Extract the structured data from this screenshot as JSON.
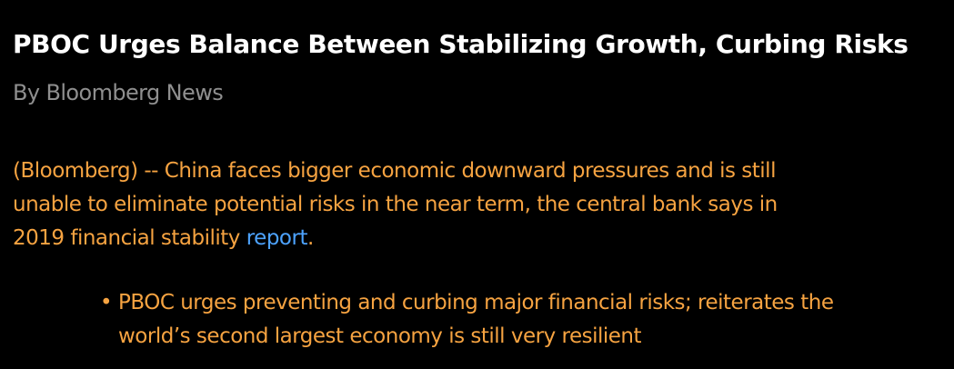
{
  "article": {
    "headline": "PBOC Urges Balance Between Stabilizing Growth, Curbing Risks",
    "byline": "By Bloomberg News",
    "lede": {
      "text": "(Bloomberg) -- China faces bigger economic downward pressures and is still unable to eliminate potential risks in the near term, the central bank says in 2019 financial stability ",
      "link_text": "report",
      "trailing": "."
    },
    "bullets": [
      {
        "marker": "•",
        "text": "PBOC urges preventing and curbing major financial risks; reiterates the world’s second largest economy is still very resilient"
      }
    ]
  },
  "colors": {
    "background": "#000000",
    "headline": "#ffffff",
    "byline": "#8f8f8f",
    "body": "#f6a341",
    "link": "#4da3ff"
  }
}
